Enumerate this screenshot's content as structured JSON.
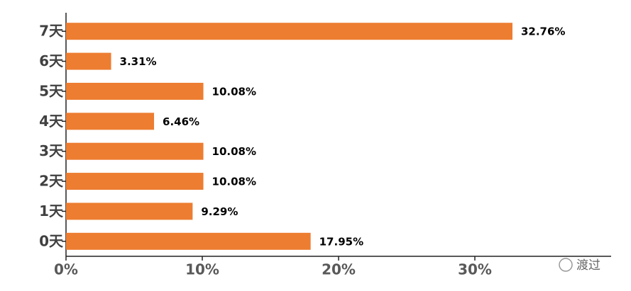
{
  "chart_data": {
    "type": "hbar",
    "categories": [
      "0天",
      "1天",
      "2天",
      "3天",
      "4天",
      "5天",
      "6天",
      "7天"
    ],
    "values": [
      17.95,
      9.29,
      10.08,
      10.08,
      6.46,
      10.08,
      3.31,
      32.76
    ],
    "value_labels": [
      "17.95%",
      "9.29%",
      "10.08%",
      "10.08%",
      "6.46%",
      "10.08%",
      "3.31%",
      "32.76%"
    ],
    "color": "#ed7d31",
    "xlim": [
      0,
      40
    ],
    "xticks": [
      {
        "value": 0,
        "label": "0%"
      },
      {
        "value": 10,
        "label": "10%"
      },
      {
        "value": 20,
        "label": "20%"
      },
      {
        "value": 30,
        "label": "30%"
      }
    ],
    "grid": false
  },
  "watermark": "渡过"
}
